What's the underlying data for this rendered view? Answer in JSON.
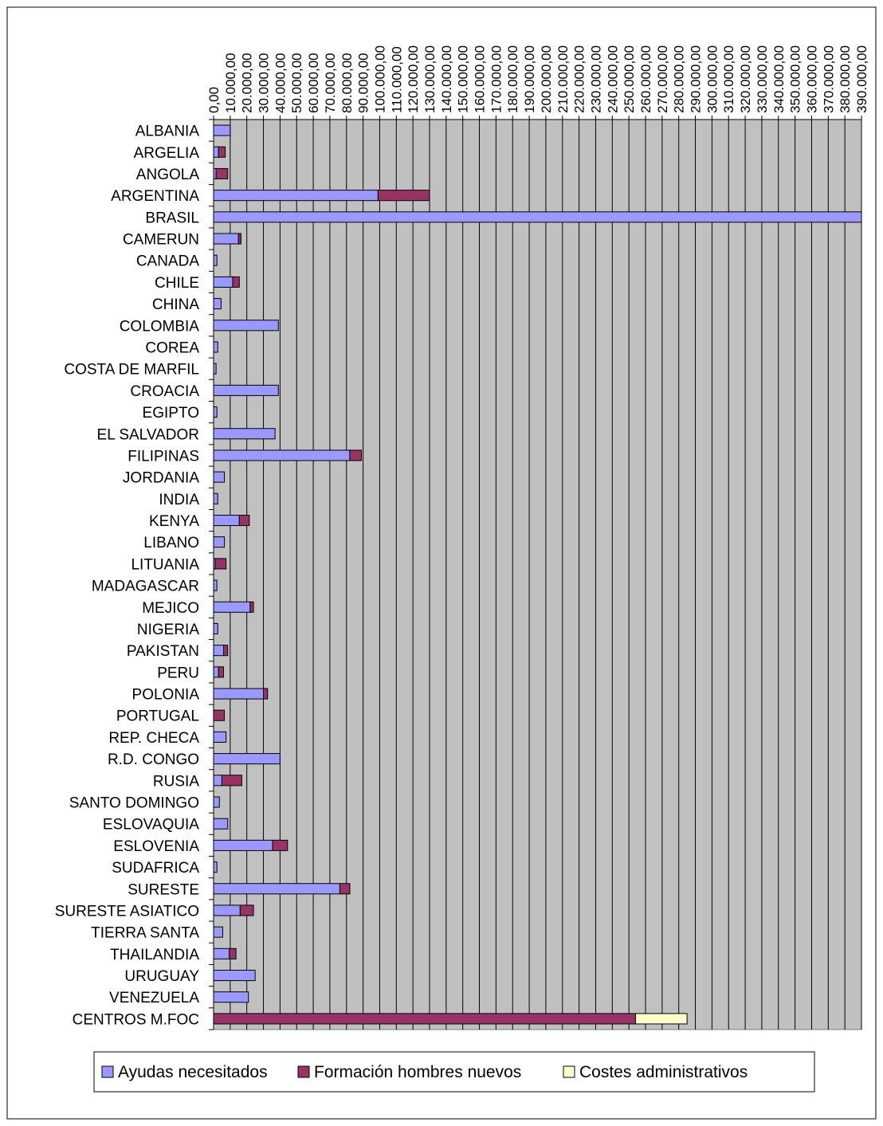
{
  "chart_data": {
    "type": "bar",
    "orientation": "horizontal",
    "stacked": true,
    "grid": true,
    "legend_position": "bottom",
    "xlim": [
      0,
      390000
    ],
    "x_tick_step": 10000,
    "x_tick_labels": [
      "0,00",
      "10.000,00",
      "20.000,00",
      "30.000,00",
      "40.000,00",
      "50.000,00",
      "60.000,00",
      "70.000,00",
      "80.000,00",
      "90.000,00",
      "100.000,00",
      "110.000,00",
      "120.000,00",
      "130.000,00",
      "140.000,00",
      "150.000,00",
      "160.000,00",
      "170.000,00",
      "180.000,00",
      "190.000,00",
      "200.000,00",
      "210.000,00",
      "220.000,00",
      "230.000,00",
      "240.000,00",
      "250.000,00",
      "260.000,00",
      "270.000,00",
      "280.000,00",
      "290.000,00",
      "300.000,00",
      "310.000,00",
      "320.000,00",
      "330.000,00",
      "340.000,00",
      "350.000,00",
      "360.000,00",
      "370.000,00",
      "380.000,00",
      "390.000,00"
    ],
    "categories": [
      "ALBANIA",
      "ARGELIA",
      "ANGOLA",
      "ARGENTINA",
      "BRASIL",
      "CAMERUN",
      "CANADA",
      "CHILE",
      "CHINA ",
      "COLOMBIA",
      "COREA",
      "COSTA DE MARFIL",
      "CROACIA",
      "EGIPTO",
      "EL SALVADOR",
      "FILIPINAS",
      "JORDANIA",
      "INDIA",
      "KENYA",
      "LIBANO",
      "LITUANIA",
      "MADAGASCAR",
      "MEJICO",
      "NIGERIA",
      "PAKISTAN",
      "PERU",
      "POLONIA",
      "PORTUGAL",
      "REP. CHECA",
      "R.D. CONGO",
      "RUSIA",
      "SANTO DOMINGO",
      "ESLOVAQUIA",
      "ESLOVENIA",
      "SUDAFRICA",
      "SURESTE",
      "SURESTE ASIATICO",
      "TIERRA SANTA",
      "THAILANDIA",
      "URUGUAY",
      "VENEZUELA",
      "CENTROS M.FOC"
    ],
    "series": [
      {
        "name": "Ayudas necesitados",
        "color": "#9999ff",
        "values": [
          10000,
          3000,
          1500,
          99000,
          390000,
          15000,
          2000,
          11500,
          4500,
          39000,
          2500,
          1500,
          39000,
          2000,
          37000,
          82000,
          6500,
          2500,
          15500,
          6500,
          1000,
          2000,
          22000,
          2500,
          6000,
          3000,
          30000,
          0,
          7500,
          40000,
          5000,
          3500,
          8500,
          35500,
          2000,
          76000,
          16000,
          5500,
          9500,
          25000,
          21000,
          0
        ]
      },
      {
        "name": "Formación hombres nuevos",
        "color": "#993366",
        "values": [
          0,
          4000,
          7000,
          31000,
          0,
          1500,
          0,
          4000,
          0,
          0,
          0,
          0,
          0,
          0,
          0,
          7000,
          0,
          0,
          6000,
          0,
          6500,
          0,
          2000,
          0,
          2500,
          3000,
          2500,
          6500,
          0,
          0,
          12000,
          0,
          0,
          9000,
          0,
          6000,
          8000,
          0,
          4000,
          0,
          0,
          254000
        ]
      },
      {
        "name": "Costes administrativos",
        "color": "#ffffcc",
        "values": [
          0,
          0,
          0,
          0,
          0,
          0,
          0,
          0,
          0,
          0,
          0,
          0,
          0,
          0,
          0,
          0,
          0,
          0,
          0,
          0,
          0,
          0,
          0,
          0,
          0,
          0,
          0,
          0,
          0,
          0,
          0,
          0,
          0,
          0,
          0,
          0,
          0,
          0,
          0,
          0,
          0,
          31000
        ]
      }
    ]
  }
}
